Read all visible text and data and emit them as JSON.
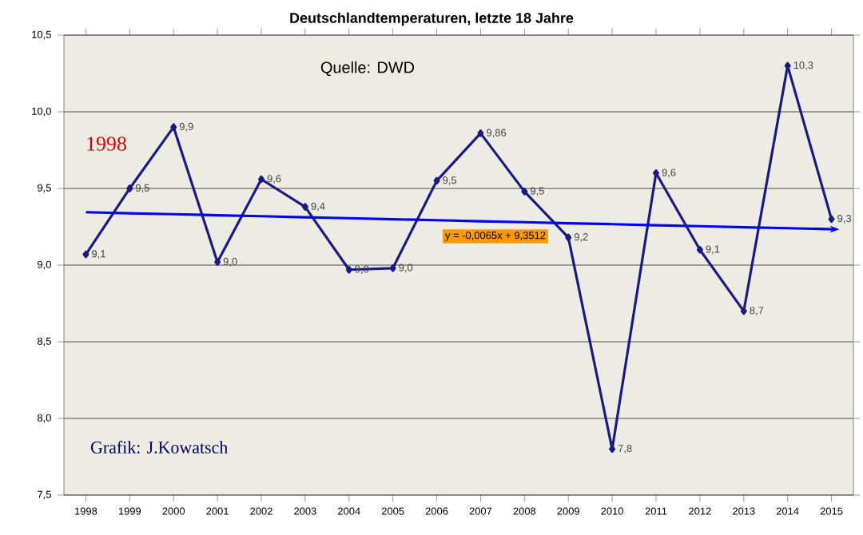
{
  "chart_data": {
    "type": "line",
    "title": "Deutschlandtemperaturen, letzte 18 Jahre",
    "categories": [
      "1998",
      "1999",
      "2000",
      "2001",
      "2002",
      "2003",
      "2004",
      "2005",
      "2006",
      "2007",
      "2008",
      "2009",
      "2010",
      "2011",
      "2012",
      "2013",
      "2014",
      "2015"
    ],
    "series": [
      {
        "color": "#1a1a80",
        "marker": "diamond",
        "values": [
          9.07,
          9.5,
          9.9,
          9.02,
          9.56,
          9.38,
          8.97,
          8.98,
          9.55,
          9.86,
          9.48,
          9.18,
          7.8,
          9.6,
          9.1,
          8.7,
          10.3,
          9.3
        ],
        "value_labels": [
          "9,1",
          "9,5",
          "9,9",
          "9,0",
          "9,6",
          "9,4",
          "9,0",
          "9,0",
          "9,5",
          "9,86",
          "9,5",
          "9,2",
          "7,8",
          "9,6",
          "9,1",
          "8,7",
          "10,3",
          "9,3"
        ]
      },
      {
        "type": "line",
        "color": "#0000ff",
        "values": [
          9.345,
          9.338,
          9.332,
          9.325,
          9.319,
          9.312,
          9.306,
          9.299,
          9.293,
          9.286,
          9.28,
          9.273,
          9.267,
          9.26,
          9.254,
          9.247,
          9.241,
          9.234
        ]
      }
    ],
    "ylim": [
      7.5,
      10.5
    ],
    "yticks": [
      {
        "value": 7.5,
        "label": "7,5"
      },
      {
        "value": 8.0,
        "label": "8,0"
      },
      {
        "value": 8.5,
        "label": "8,5"
      },
      {
        "value": 9.0,
        "label": "9,0"
      },
      {
        "value": 9.5,
        "label": "9,5"
      },
      {
        "value": 10.0,
        "label": "10,0"
      },
      {
        "value": 10.5,
        "label": "10,5"
      }
    ],
    "grid": "y",
    "annotations": [
      "Quelle: DWD",
      "1998",
      "Grafik:  J.Kowatsch",
      "y = -0,0065x + 9,3512"
    ]
  }
}
